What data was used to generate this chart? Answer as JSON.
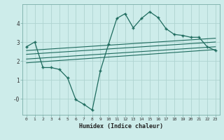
{
  "xlabel": "Humidex (Indice chaleur)",
  "background_color": "#cdecea",
  "grid_color": "#aed4d0",
  "line_color": "#1e6b5e",
  "x_ticks": [
    0,
    1,
    2,
    3,
    4,
    5,
    6,
    7,
    8,
    9,
    10,
    11,
    12,
    13,
    14,
    15,
    16,
    17,
    18,
    19,
    20,
    21,
    22,
    23
  ],
  "y_ticks": [
    0,
    1,
    2,
    3,
    4
  ],
  "y_tick_labels": [
    "-0",
    "1",
    "2",
    "3",
    "4"
  ],
  "ylim": [
    -0.85,
    5.0
  ],
  "xlim": [
    -0.5,
    23.5
  ],
  "main_line_x": [
    0,
    1,
    2,
    3,
    4,
    5,
    6,
    7,
    8,
    9,
    10,
    11,
    12,
    13,
    14,
    15,
    16,
    17,
    18,
    19,
    20,
    21,
    22,
    23
  ],
  "main_line_y": [
    2.75,
    3.0,
    1.65,
    1.65,
    1.55,
    1.1,
    -0.05,
    -0.3,
    -0.6,
    1.5,
    2.9,
    4.25,
    4.5,
    3.75,
    4.25,
    4.6,
    4.3,
    3.7,
    3.4,
    3.35,
    3.25,
    3.25,
    2.75,
    2.55
  ],
  "line2_x": [
    0,
    23
  ],
  "line2_y": [
    2.55,
    3.2
  ],
  "line3_x": [
    0,
    23
  ],
  "line3_y": [
    2.35,
    3.0
  ],
  "line4_x": [
    0,
    23
  ],
  "line4_y": [
    2.1,
    2.75
  ],
  "line5_x": [
    0,
    23
  ],
  "line5_y": [
    1.9,
    2.6
  ]
}
